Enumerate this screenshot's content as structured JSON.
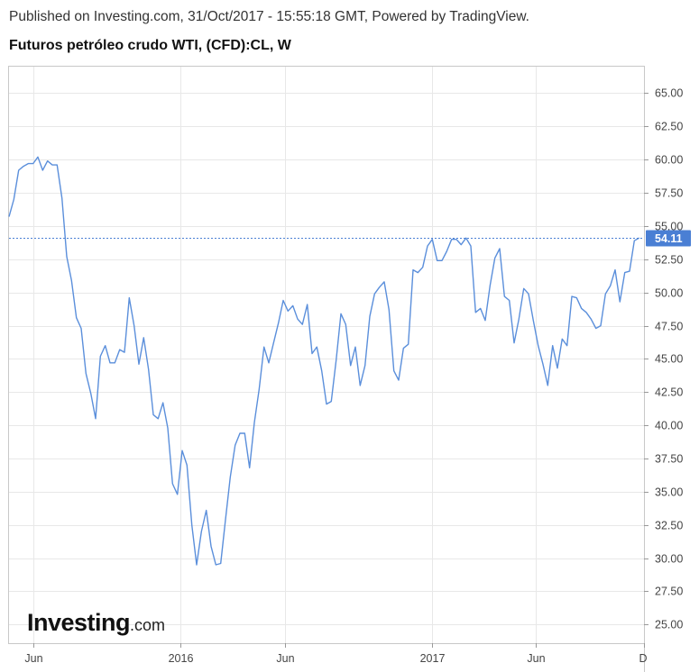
{
  "header": {
    "published": "Published on Investing.com, 31/Oct/2017 - 15:55:18 GMT, Powered by TradingView.",
    "symbol_title": "Futuros petróleo crudo WTI, (CFD):CL, W"
  },
  "logo": {
    "main": "Investing",
    "suffix": ".com"
  },
  "colors": {
    "line": "#5b8fdb",
    "grid": "#e8e8e8",
    "last_badge": "#4a7fd4",
    "border": "#c8c8c8"
  },
  "chart_data": {
    "type": "line",
    "title": "Futuros petróleo crudo WTI, (CFD):CL, W",
    "xlabel": "",
    "ylabel": "",
    "grid": true,
    "y_axis_position": "right",
    "ylim": [
      23.6,
      67.0
    ],
    "xlim": [
      "2015-04-27",
      "2017-11-06"
    ],
    "y_ticks": [
      "25.00",
      "27.50",
      "30.00",
      "32.50",
      "35.00",
      "37.50",
      "40.00",
      "42.50",
      "45.00",
      "47.50",
      "50.00",
      "52.50",
      "55.00",
      "57.50",
      "60.00",
      "62.50",
      "65.00"
    ],
    "x_ticks": [
      {
        "label": "Jun",
        "date": "2015-06-01"
      },
      {
        "label": "2016",
        "date": "2016-01-01"
      },
      {
        "label": "Jun",
        "date": "2016-06-01"
      },
      {
        "label": "2017",
        "date": "2017-01-01"
      },
      {
        "label": "Jun",
        "date": "2017-06-01"
      },
      {
        "label": "D",
        "date": "2017-11-06"
      }
    ],
    "last_value": 54.11,
    "series": [
      {
        "x": [
          "2015-04-27",
          "2015-05-04",
          "2015-05-11",
          "2015-05-18",
          "2015-05-25",
          "2015-06-01",
          "2015-06-08",
          "2015-06-15",
          "2015-06-22",
          "2015-06-29",
          "2015-07-06",
          "2015-07-13",
          "2015-07-20",
          "2015-07-27",
          "2015-08-03",
          "2015-08-10",
          "2015-08-17",
          "2015-08-24",
          "2015-08-31",
          "2015-09-07",
          "2015-09-14",
          "2015-09-21",
          "2015-09-28",
          "2015-10-05",
          "2015-10-12",
          "2015-10-19",
          "2015-10-26",
          "2015-11-02",
          "2015-11-09",
          "2015-11-16",
          "2015-11-23",
          "2015-11-30",
          "2015-12-07",
          "2015-12-14",
          "2015-12-21",
          "2015-12-28",
          "2016-01-04",
          "2016-01-11",
          "2016-01-18",
          "2016-01-25",
          "2016-02-01",
          "2016-02-08",
          "2016-02-15",
          "2016-02-22",
          "2016-02-29",
          "2016-03-07",
          "2016-03-14",
          "2016-03-21",
          "2016-03-28",
          "2016-04-04",
          "2016-04-11",
          "2016-04-18",
          "2016-04-25",
          "2016-05-02",
          "2016-05-09",
          "2016-05-16",
          "2016-05-23",
          "2016-05-30",
          "2016-06-06",
          "2016-06-13",
          "2016-06-20",
          "2016-06-27",
          "2016-07-04",
          "2016-07-11",
          "2016-07-18",
          "2016-07-25",
          "2016-08-01",
          "2016-08-08",
          "2016-08-15",
          "2016-08-22",
          "2016-08-29",
          "2016-09-05",
          "2016-09-12",
          "2016-09-19",
          "2016-09-26",
          "2016-10-03",
          "2016-10-10",
          "2016-10-17",
          "2016-10-24",
          "2016-10-31",
          "2016-11-07",
          "2016-11-14",
          "2016-11-21",
          "2016-11-28",
          "2016-12-05",
          "2016-12-12",
          "2016-12-19",
          "2016-12-26",
          "2017-01-02",
          "2017-01-09",
          "2017-01-16",
          "2017-01-23",
          "2017-01-30",
          "2017-02-06",
          "2017-02-13",
          "2017-02-20",
          "2017-02-27",
          "2017-03-06",
          "2017-03-13",
          "2017-03-20",
          "2017-03-27",
          "2017-04-03",
          "2017-04-10",
          "2017-04-17",
          "2017-04-24",
          "2017-05-01",
          "2017-05-08",
          "2017-05-15",
          "2017-05-22",
          "2017-05-29",
          "2017-06-05",
          "2017-06-12",
          "2017-06-19",
          "2017-06-26",
          "2017-07-03",
          "2017-07-10",
          "2017-07-17",
          "2017-07-24",
          "2017-07-31",
          "2017-08-07",
          "2017-08-14",
          "2017-08-21",
          "2017-08-28",
          "2017-09-04",
          "2017-09-11",
          "2017-09-18",
          "2017-09-25",
          "2017-10-02",
          "2017-10-09",
          "2017-10-16",
          "2017-10-23",
          "2017-10-30"
        ],
        "values": [
          55.7,
          57.0,
          59.2,
          59.5,
          59.7,
          59.7,
          60.2,
          59.2,
          59.9,
          59.6,
          59.6,
          57.1,
          52.7,
          50.9,
          48.1,
          47.3,
          43.9,
          42.4,
          40.5,
          45.2,
          46.0,
          44.7,
          44.7,
          45.7,
          45.5,
          49.6,
          47.5,
          44.6,
          46.6,
          44.2,
          40.8,
          40.5,
          41.7,
          39.8,
          35.6,
          34.8,
          38.1,
          37.0,
          32.5,
          29.5,
          32.0,
          33.6,
          30.9,
          29.5,
          29.6,
          32.9,
          36.1,
          38.5,
          39.4,
          39.4,
          36.8,
          40.2,
          42.7,
          45.9,
          44.7,
          46.2,
          47.7,
          49.4,
          48.6,
          49.0,
          48.0,
          47.6,
          49.1,
          45.4,
          45.9,
          44.1,
          41.6,
          41.8,
          44.9,
          48.4,
          47.6,
          44.5,
          45.9,
          43.0,
          44.5,
          48.2,
          49.9,
          50.4,
          50.8,
          48.7,
          44.1,
          43.4,
          45.8,
          46.1,
          51.7,
          51.5,
          51.9,
          53.5,
          54.0,
          52.4,
          52.4,
          53.1,
          54.0,
          54.0,
          53.6,
          54.1,
          53.5,
          48.5,
          48.8,
          47.9,
          50.5,
          52.6,
          53.3,
          49.7,
          49.4,
          46.2,
          48.0,
          50.3,
          49.9,
          47.9,
          46.0,
          44.6,
          43.0,
          46.0,
          44.3,
          46.5,
          46.0,
          49.7,
          49.6,
          48.8,
          48.5,
          48.0,
          47.3,
          47.5,
          49.9,
          50.5,
          51.7,
          49.3,
          51.5,
          51.6,
          53.9,
          54.11
        ]
      }
    ]
  }
}
